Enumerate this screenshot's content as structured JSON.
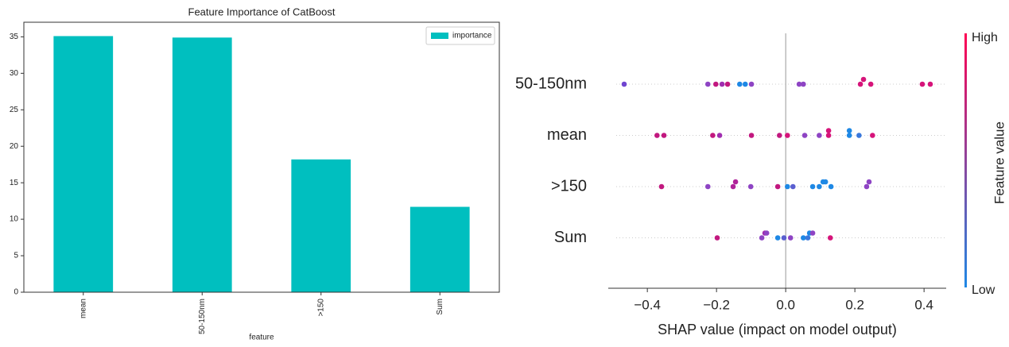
{
  "chart_data": [
    {
      "type": "bar",
      "title": "Feature Importance of CatBoost",
      "x_label": "feature",
      "categories": [
        "mean",
        "50-150nm",
        ">150",
        "Sum"
      ],
      "series": [
        {
          "name": "importance",
          "color": "#00bfbf",
          "values": [
            35.1,
            34.9,
            18.2,
            11.7
          ]
        }
      ],
      "ylim": [
        0,
        37
      ],
      "yticks": [
        0,
        5,
        10,
        15,
        20,
        25,
        30,
        35
      ],
      "grid": false,
      "legend": "upper right"
    },
    {
      "type": "scatter",
      "x_label": "SHAP value (impact on model output)",
      "xlim": [
        -0.513,
        0.464
      ],
      "xticks": [
        {
          "value": -0.4,
          "label": "−0.4"
        },
        {
          "value": -0.2,
          "label": "−0.2"
        },
        {
          "value": 0,
          "label": "0.0"
        },
        0.2,
        0.4
      ],
      "colorbar": {
        "label": "Feature value",
        "high": "High",
        "low": "Low",
        "colors": [
          "#1e88e5",
          "#ff0052"
        ]
      },
      "rows": [
        {
          "feature": "50-150nm",
          "x": [
            -0.467,
            -0.225,
            -0.202,
            -0.184,
            -0.168,
            -0.133,
            -0.117,
            -0.099,
            0.039,
            0.051,
            0.216,
            0.225,
            0.246,
            0.395,
            0.418
          ],
          "colors": [
            "#7045d0",
            "#8e44c4",
            "#c2187f",
            "#a02eb0",
            "#c2187f",
            "#1e88e5",
            "#1e88e5",
            "#8e44c4",
            "#8e44c4",
            "#8e44c4",
            "#d6147a",
            "#d6147a",
            "#d6147a",
            "#d6147a",
            "#d6147a"
          ]
        },
        {
          "feature": "mean",
          "x": [
            -0.372,
            -0.352,
            -0.211,
            -0.191,
            -0.099,
            -0.018,
            0.005,
            0.055,
            0.097,
            0.124,
            0.124,
            0.184,
            0.184,
            0.212,
            0.251
          ],
          "colors": [
            "#c2187f",
            "#c2187f",
            "#c2187f",
            "#a02eb0",
            "#c2187f",
            "#c2187f",
            "#d6147a",
            "#8e44c4",
            "#8e44c4",
            "#d6147a",
            "#d6147a",
            "#1e88e5",
            "#1e88e5",
            "#3a78dc",
            "#d6147a"
          ]
        },
        {
          "feature": ">150",
          "x": [
            -0.359,
            -0.225,
            -0.152,
            -0.145,
            -0.101,
            -0.023,
            0.005,
            0.021,
            0.078,
            0.097,
            0.108,
            0.115,
            0.131,
            0.234,
            0.241
          ],
          "colors": [
            "#c2187f",
            "#8e44c4",
            "#b0239a",
            "#b0239a",
            "#8e44c4",
            "#c2187f",
            "#1e88e5",
            "#5a5fd0",
            "#1e88e5",
            "#1e88e5",
            "#1e88e5",
            "#1e88e5",
            "#1e88e5",
            "#8e44c4",
            "#8e44c4"
          ]
        },
        {
          "feature": "Sum",
          "x": [
            -0.198,
            -0.069,
            -0.06,
            -0.055,
            -0.023,
            -0.005,
            0.014,
            0.051,
            0.064,
            0.069,
            0.078,
            0.129
          ],
          "colors": [
            "#c2187f",
            "#8e44c4",
            "#a02eb0",
            "#8e44c4",
            "#1e88e5",
            "#5a5fd0",
            "#8e44c4",
            "#1e88e5",
            "#3a78dc",
            "#1e88e5",
            "#8e44c4",
            "#d6147a"
          ]
        }
      ]
    }
  ]
}
